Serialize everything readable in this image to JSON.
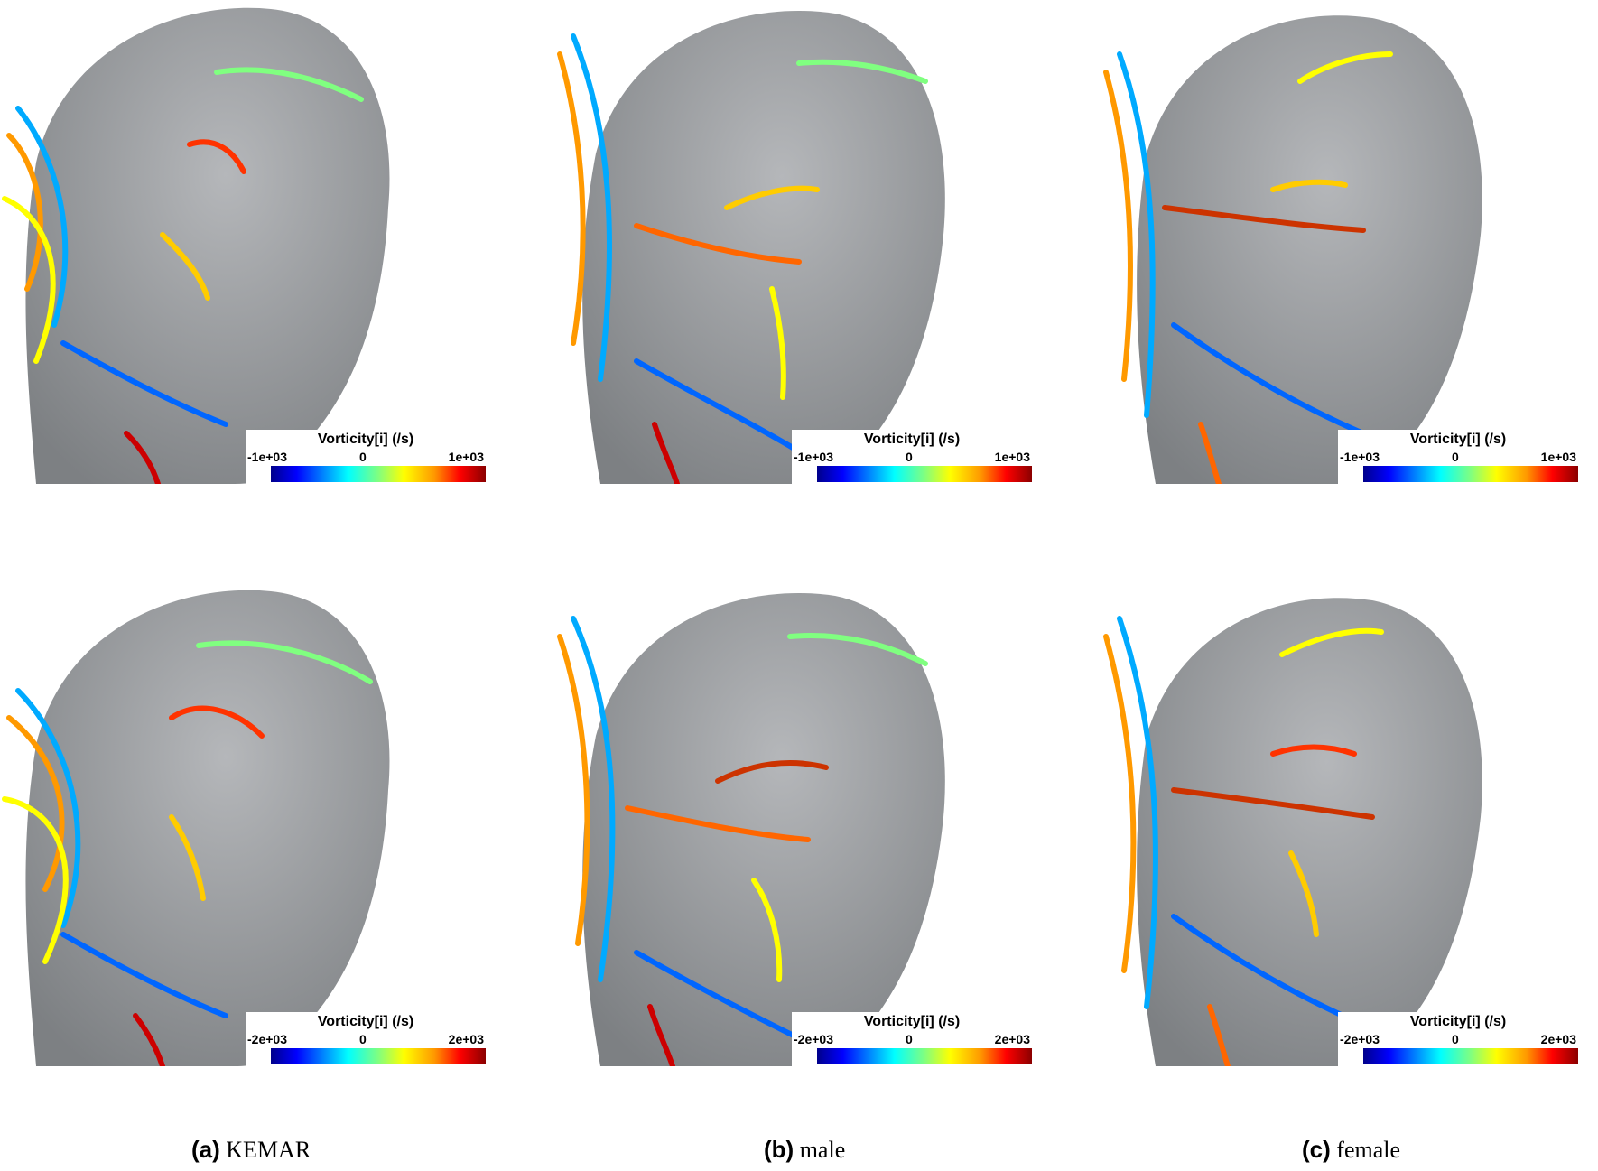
{
  "legend": {
    "title": "Vorticity[i] (/s)",
    "row1": {
      "min": "-1e+03",
      "mid": "0",
      "max": "1e+03"
    },
    "row2": {
      "min": "-2e+03",
      "mid": "0",
      "max": "2e+03"
    },
    "colormap": [
      "#00008b",
      "#0000ff",
      "#0080ff",
      "#00ffff",
      "#80ff80",
      "#ffff00",
      "#ff9900",
      "#ff0000",
      "#8b0000"
    ]
  },
  "captions": [
    {
      "letter": "(a)",
      "label": "KEMAR"
    },
    {
      "letter": "(b)",
      "label": "male"
    },
    {
      "letter": "(c)",
      "label": "female"
    }
  ],
  "colors": {
    "head_surface": "#9a9c9f",
    "background": "#ffffff"
  }
}
